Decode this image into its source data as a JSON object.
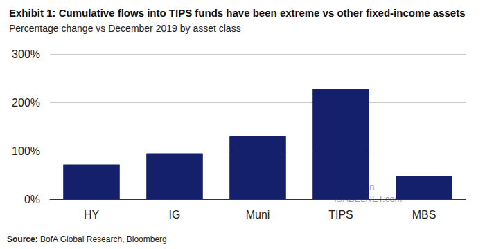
{
  "chart_data": {
    "type": "bar",
    "title": "Exhibit 1: Cumulative flows into TIPS funds have been extreme vs other fixed-income assets",
    "subtitle": "Percentage change vs December 2019 by asset class",
    "categories": [
      "HY",
      "IG",
      "Muni",
      "TIPS",
      "MBS"
    ],
    "values": [
      72,
      95,
      130,
      228,
      48
    ],
    "color": "#14206b",
    "ylim": [
      0,
      300
    ],
    "yticks": [
      {
        "value": 0,
        "label": "0%"
      },
      {
        "value": 100,
        "label": "100%"
      },
      {
        "value": 200,
        "label": "200%"
      },
      {
        "value": 300,
        "label": "300%"
      }
    ],
    "grid": true,
    "source": "Source: BofA Global Research, Bloomberg",
    "annotations": [
      "Posted on",
      "ISABELNET.com"
    ]
  }
}
